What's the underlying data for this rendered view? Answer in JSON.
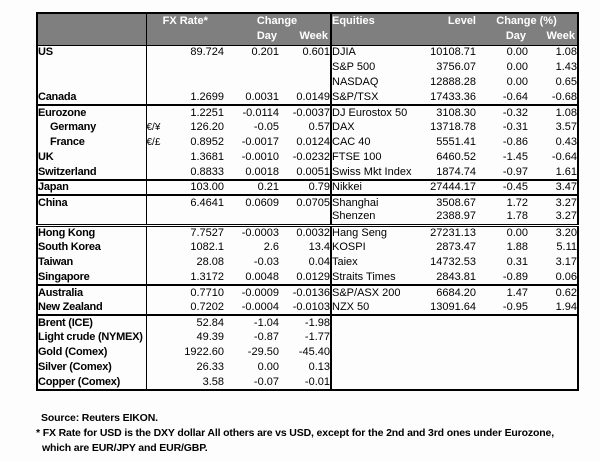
{
  "colors": {
    "header_bg": "#7f7f7f",
    "header_text": "#ffffff",
    "border": "#000000",
    "text": "#000000",
    "page_bg": "#fdfdfd"
  },
  "header": {
    "fx_rate": "FX Rate*",
    "change": "Change",
    "day": "Day",
    "week": "Week",
    "equities": "Equities",
    "level": "Level",
    "change_pct": "Change (%)"
  },
  "footnotes": [
    "Source:  Reuters EIKON.",
    "* FX Rate for USD is the DXY dollar  All others are vs USD, except for the 2nd and 3rd ones under Eurozone,",
    "which are EUR/JPY and EUR/GBP."
  ],
  "table": {
    "groups": [
      {
        "rows": [
          {
            "label": "US",
            "sym": "",
            "fx": "89.724",
            "fx_day": "0.201",
            "fx_week": "0.601",
            "equity": "DJIA",
            "level": "10108.71",
            "eq_day": "0.00",
            "eq_week": "1.08",
            "indent": false
          },
          {
            "label": "",
            "sym": "",
            "fx": "",
            "fx_day": "",
            "fx_week": "",
            "equity": "S&P 500",
            "level": "3756.07",
            "eq_day": "0.00",
            "eq_week": "1.43",
            "indent": false
          },
          {
            "label": "",
            "sym": "",
            "fx": "",
            "fx_day": "",
            "fx_week": "",
            "equity": "NASDAQ",
            "level": "12888.28",
            "eq_day": "0.00",
            "eq_week": "0.65",
            "indent": false
          },
          {
            "label": "Canada",
            "sym": "",
            "fx": "1.2699",
            "fx_day": "0.0031",
            "fx_week": "0.0149",
            "equity": "S&P/TSX",
            "level": "17433.36",
            "eq_day": "-0.64",
            "eq_week": "-0.68",
            "indent": false
          }
        ]
      },
      {
        "rows": [
          {
            "label": "Eurozone",
            "sym": "",
            "fx": "1.2251",
            "fx_day": "-0.0114",
            "fx_week": "-0.0037",
            "equity": "DJ Eurostox 50",
            "level": "3108.30",
            "eq_day": "-0.32",
            "eq_week": "1.08",
            "indent": false
          },
          {
            "label": "Germany",
            "sym": "€/¥",
            "fx": "126.20",
            "fx_day": "-0.05",
            "fx_week": "0.57",
            "equity": "DAX",
            "level": "13718.78",
            "eq_day": "-0.31",
            "eq_week": "3.57",
            "indent": true
          },
          {
            "label": "France",
            "sym": "€/£",
            "fx": "0.8952",
            "fx_day": "-0.0017",
            "fx_week": "0.0124",
            "equity": "CAC 40",
            "level": "5551.41",
            "eq_day": "-0.86",
            "eq_week": "0.43",
            "indent": true
          },
          {
            "label": "UK",
            "sym": "",
            "fx": "1.3681",
            "fx_day": "-0.0010",
            "fx_week": "-0.0232",
            "equity": "FTSE 100",
            "level": "6460.52",
            "eq_day": "-1.45",
            "eq_week": "-0.64",
            "indent": false
          },
          {
            "label": "Switzerland",
            "sym": "",
            "fx": "0.8833",
            "fx_day": "0.0018",
            "fx_week": "0.0051",
            "equity": "Swiss Mkt Index",
            "level": "1874.74",
            "eq_day": "-0.97",
            "eq_week": "1.61",
            "indent": false
          }
        ]
      },
      {
        "rows": [
          {
            "label": "Japan",
            "sym": "",
            "fx": "103.00",
            "fx_day": "0.21",
            "fx_week": "0.79",
            "equity": "Nikkei",
            "level": "27444.17",
            "eq_day": "-0.45",
            "eq_week": "3.47",
            "indent": false
          }
        ]
      },
      {
        "rows": [
          {
            "label": "China",
            "sym": "",
            "fx": "6.4641",
            "fx_day": "0.0609",
            "fx_week": "0.0705",
            "equity": "Shanghai",
            "level": "3508.67",
            "eq_day": "1.72",
            "eq_week": "3.27",
            "indent": false
          },
          {
            "label": "",
            "sym": "",
            "fx": "",
            "fx_day": "",
            "fx_week": "",
            "equity": "Shenzen",
            "level": "2388.97",
            "eq_day": "1.78",
            "eq_week": "3.27",
            "indent": false
          }
        ]
      },
      {
        "double_border": true,
        "rows": [
          {
            "label": "Hong Kong",
            "sym": "",
            "fx": "7.7527",
            "fx_day": "-0.0003",
            "fx_week": "0.0032",
            "equity": "Hang Seng",
            "level": "27231.13",
            "eq_day": "0.00",
            "eq_week": "3.20",
            "indent": false
          },
          {
            "label": "South Korea",
            "sym": "",
            "fx": "1082.1",
            "fx_day": "2.6",
            "fx_week": "13.4",
            "equity": "KOSPI",
            "level": "2873.47",
            "eq_day": "1.88",
            "eq_week": "5.11",
            "indent": false
          },
          {
            "label": "Taiwan",
            "sym": "",
            "fx": "28.08",
            "fx_day": "-0.03",
            "fx_week": "0.04",
            "equity": "Taiex",
            "level": "14732.53",
            "eq_day": "0.31",
            "eq_week": "3.17",
            "indent": false
          },
          {
            "label": "Singapore",
            "sym": "",
            "fx": "1.3172",
            "fx_day": "0.0048",
            "fx_week": "0.0129",
            "equity": "Straits Times",
            "level": "2843.81",
            "eq_day": "-0.89",
            "eq_week": "0.06",
            "indent": false
          }
        ]
      },
      {
        "rows": [
          {
            "label": "Australia",
            "sym": "",
            "fx": "0.7710",
            "fx_day": "-0.0009",
            "fx_week": "-0.0136",
            "equity": "S&P/ASX 200",
            "level": "6684.20",
            "eq_day": "1.47",
            "eq_week": "0.62",
            "indent": false
          },
          {
            "label": "New Zealand",
            "sym": "",
            "fx": "0.7202",
            "fx_day": "-0.0004",
            "fx_week": "-0.0103",
            "equity": "NZX 50",
            "level": "13091.64",
            "eq_day": "-0.95",
            "eq_week": "1.94",
            "indent": false
          }
        ]
      },
      {
        "rows": [
          {
            "label": "Brent (ICE)",
            "sym": "",
            "fx": "52.84",
            "fx_day": "-1.04",
            "fx_week": "-1.98",
            "equity": "",
            "level": "",
            "eq_day": "",
            "eq_week": "",
            "indent": false
          },
          {
            "label": "Light crude (NYMEX)",
            "sym": "",
            "fx": "49.39",
            "fx_day": "-0.87",
            "fx_week": "-1.77",
            "equity": "",
            "level": "",
            "eq_day": "",
            "eq_week": "",
            "indent": false
          },
          {
            "label": "Gold (Comex)",
            "sym": "",
            "fx": "1922.60",
            "fx_day": "-29.50",
            "fx_week": "-45.40",
            "equity": "",
            "level": "",
            "eq_day": "",
            "eq_week": "",
            "indent": false
          },
          {
            "label": "Silver (Comex)",
            "sym": "",
            "fx": "26.33",
            "fx_day": "0.00",
            "fx_week": "0.13",
            "equity": "",
            "level": "",
            "eq_day": "",
            "eq_week": "",
            "indent": false
          },
          {
            "label": "Copper (Comex)",
            "sym": "",
            "fx": "3.58",
            "fx_day": "-0.07",
            "fx_week": "-0.01",
            "equity": "",
            "level": "",
            "eq_day": "",
            "eq_week": "",
            "indent": false
          }
        ]
      }
    ]
  }
}
